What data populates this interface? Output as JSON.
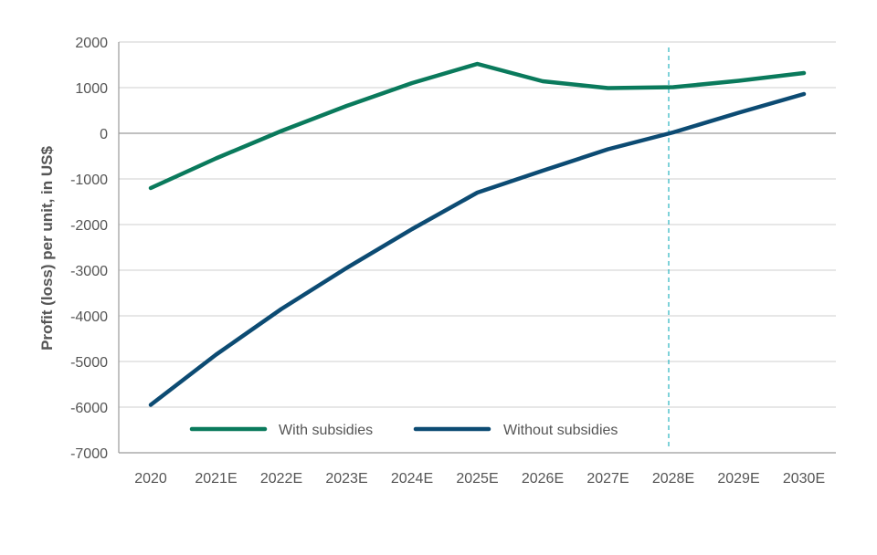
{
  "chart_data": {
    "type": "line",
    "title": "",
    "xlabel": "",
    "ylabel": "Profit (loss) per unit, in US$",
    "categories": [
      "2020",
      "2021E",
      "2022E",
      "2023E",
      "2024E",
      "2025E",
      "2026E",
      "2027E",
      "2028E",
      "2029E",
      "2030E"
    ],
    "yticks": [
      "2000",
      "1000",
      "0",
      "-1000",
      "-2000",
      "-3000",
      "-4000",
      "-5000",
      "-6000",
      "-7000"
    ],
    "ylim": [
      -7000,
      2000
    ],
    "grid": true,
    "legend_position": "bottom-inside",
    "reference_line": {
      "x": "2028E",
      "style": "dashed",
      "color": "#2ab3c0"
    },
    "series": [
      {
        "name": "With subsidies",
        "color": "#0a7a5c",
        "values": [
          -1200,
          -550,
          50,
          600,
          1100,
          1520,
          1140,
          990,
          1010,
          1150,
          1320
        ]
      },
      {
        "name": "Without subsidies",
        "color": "#0c4b73",
        "values": [
          -5950,
          -4850,
          -3850,
          -2950,
          -2100,
          -1300,
          -820,
          -350,
          20,
          450,
          860
        ]
      }
    ]
  }
}
